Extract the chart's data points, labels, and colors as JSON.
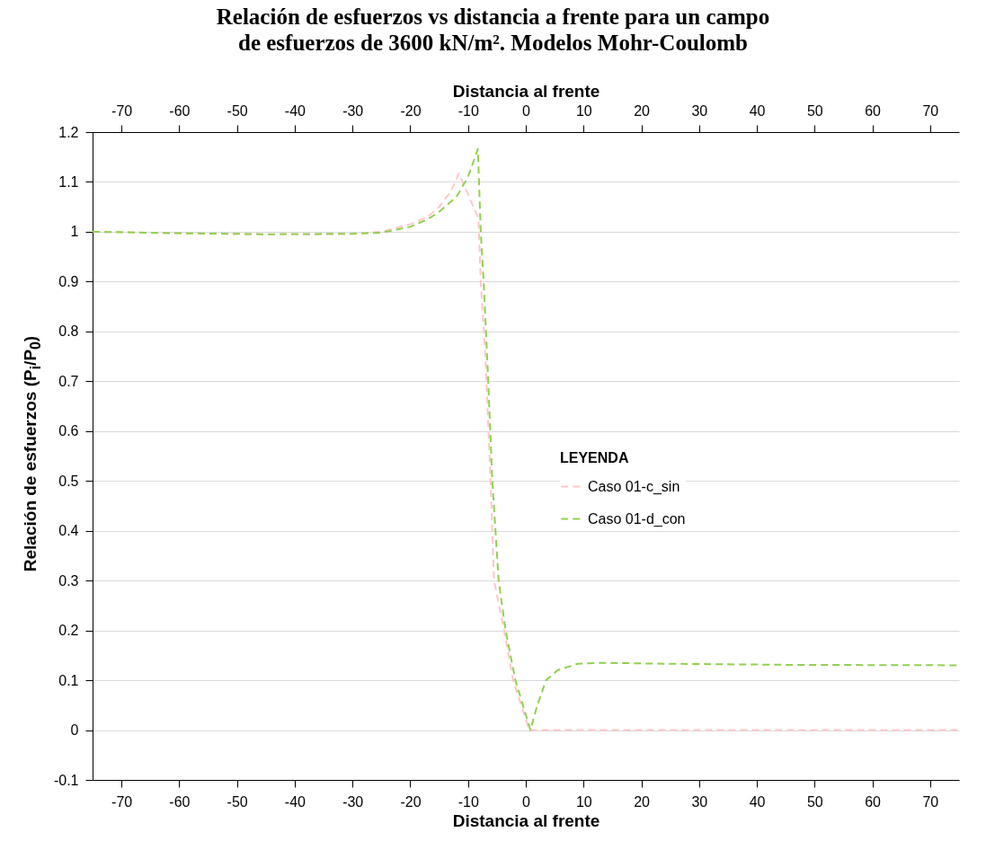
{
  "chart_data": {
    "type": "line",
    "title": "Relación de esfuerzos vs distancia a frente para un campo\nde esfuerzos de 3600 kN/m². Modelos Mohr-Coulomb",
    "xlabel": "Distancia al frente",
    "x2label": "Distancia al frente",
    "ylabel": "Relación de esfuerzos (P$_{i}$/P$_{0}$)",
    "legend_title": "LEYENDA",
    "legend": "right",
    "grid": "y",
    "line_style": "dashed",
    "marker": "none",
    "xlim": [
      -75,
      75
    ],
    "xticks": [
      -70,
      -60,
      -50,
      -40,
      -30,
      -20,
      -10,
      0,
      10,
      20,
      30,
      40,
      50,
      60,
      70
    ],
    "x2lim": [
      -75,
      75
    ],
    "x2ticks": [
      -70,
      -60,
      -50,
      -40,
      -30,
      -20,
      -10,
      0,
      10,
      20,
      30,
      40,
      50,
      60,
      70
    ],
    "ylim": [
      -0.1,
      1.2
    ],
    "yticks": [
      -0.1,
      0,
      0.1,
      0.2,
      0.3,
      0.4,
      0.5,
      0.6,
      0.7,
      0.8,
      0.9,
      1,
      1.1,
      1.2
    ],
    "series": [
      {
        "name": "Caso 01-c_sin",
        "color": "#ffc7c7",
        "x": [
          -75,
          -60,
          -45,
          -35,
          -30,
          -25,
          -20,
          -17,
          -15,
          -13,
          -11.6,
          -10,
          -8.2,
          -7.8,
          -7,
          -6.1,
          -5.5,
          -3.75,
          -2.2,
          0.6,
          5,
          20,
          40,
          60,
          75
        ],
        "values": [
          1.0,
          0.997,
          0.995,
          0.995,
          0.996,
          1.0,
          1.015,
          1.03,
          1.05,
          1.08,
          1.117,
          1.075,
          1.027,
          0.9,
          0.75,
          0.5,
          0.3,
          0.2,
          0.1,
          0,
          0,
          0,
          0,
          0,
          0
        ]
      },
      {
        "name": "Caso 01-d_con",
        "color": "#92d050",
        "x": [
          -75,
          -60,
          -45,
          -30,
          -25,
          -20,
          -17,
          -15,
          -12,
          -10,
          -8.3,
          -7.8,
          -7.3,
          -6.5,
          -5.8,
          -4.7,
          -3.5,
          -1.8,
          0.8,
          2,
          3.5,
          5.5,
          9,
          13,
          25,
          45,
          75
        ],
        "values": [
          1.0,
          0.997,
          0.995,
          0.996,
          0.998,
          1.01,
          1.025,
          1.04,
          1.07,
          1.11,
          1.166,
          1.0,
          0.9,
          0.7,
          0.5,
          0.3,
          0.2,
          0.1,
          0,
          0.05,
          0.1,
          0.12,
          0.133,
          0.135,
          0.133,
          0.131,
          0.13
        ]
      }
    ]
  }
}
